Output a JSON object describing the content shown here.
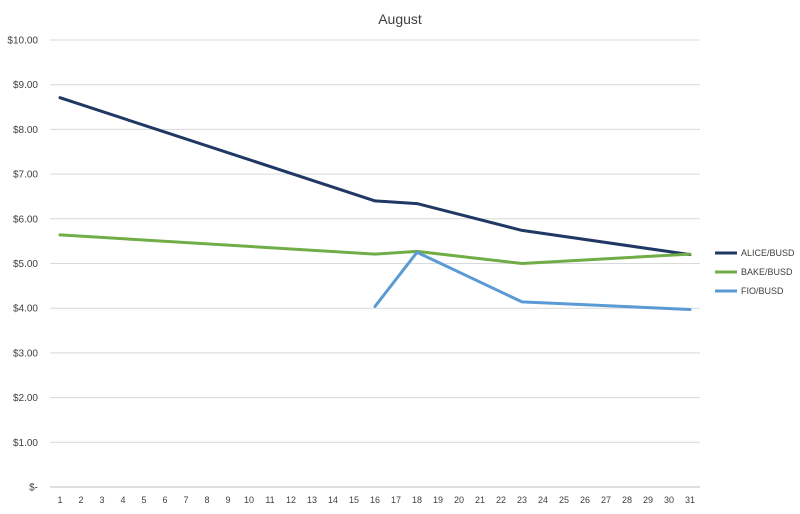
{
  "chart_data": {
    "type": "line",
    "title": "August",
    "xlabel": "",
    "ylabel": "",
    "x": [
      1,
      2,
      3,
      4,
      5,
      6,
      7,
      8,
      9,
      10,
      11,
      12,
      13,
      14,
      15,
      16,
      17,
      18,
      19,
      20,
      21,
      22,
      23,
      24,
      25,
      26,
      27,
      28,
      29,
      30,
      31
    ],
    "ylim": [
      0,
      10
    ],
    "yticks": [
      {
        "value": 0,
        "label": "$-"
      },
      {
        "value": 1,
        "label": "$1.00"
      },
      {
        "value": 2,
        "label": "$2.00"
      },
      {
        "value": 3,
        "label": "$3.00"
      },
      {
        "value": 4,
        "label": "$4.00"
      },
      {
        "value": 5,
        "label": "$5.00"
      },
      {
        "value": 6,
        "label": "$6.00"
      },
      {
        "value": 7,
        "label": "$7.00"
      },
      {
        "value": 8,
        "label": "$8.00"
      },
      {
        "value": 9,
        "label": "$9.00"
      },
      {
        "value": 10,
        "label": "$10.00"
      }
    ],
    "grid": "horizontal",
    "legend": "right",
    "series": [
      {
        "name": "ALICE/BUSD",
        "color": "#203864",
        "points": [
          [
            1,
            8.71
          ],
          [
            16,
            6.4
          ],
          [
            18,
            6.34
          ],
          [
            23,
            5.74
          ],
          [
            31,
            5.2
          ]
        ]
      },
      {
        "name": "BAKE/BUSD",
        "color": "#70ad47",
        "points": [
          [
            1,
            5.64
          ],
          [
            16,
            5.21
          ],
          [
            18,
            5.27
          ],
          [
            23,
            5.0
          ],
          [
            31,
            5.21
          ]
        ]
      },
      {
        "name": "FIO/BUSD",
        "color": "#5b9bd5",
        "points": [
          [
            16,
            4.04
          ],
          [
            18,
            5.25
          ],
          [
            23,
            4.14
          ],
          [
            31,
            3.97
          ]
        ]
      }
    ]
  }
}
